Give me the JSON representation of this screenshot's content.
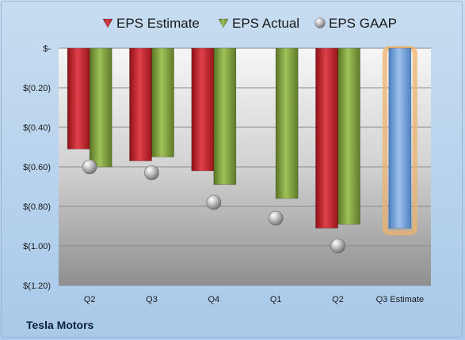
{
  "chart_data": {
    "type": "bar",
    "categories": [
      "Q2",
      "Q3",
      "Q4",
      "Q1",
      "Q2",
      "Q3 Estimate"
    ],
    "series": [
      {
        "name": "EPS Estimate",
        "color": "#c0202a",
        "values": [
          -0.51,
          -0.57,
          -0.62,
          null,
          -0.91,
          null
        ]
      },
      {
        "name": "EPS Actual",
        "color": "#7a9a34",
        "values": [
          -0.6,
          -0.55,
          -0.69,
          -0.76,
          -0.89,
          null
        ]
      },
      {
        "name": "EPS GAAP",
        "color": "#a8a8a8",
        "values": [
          -0.6,
          -0.63,
          -0.78,
          -0.86,
          -1.0,
          null
        ]
      }
    ],
    "highlight": {
      "category": "Q3 Estimate",
      "value": -0.91,
      "color": "#6f9fd8",
      "glow": "#f0b36a"
    },
    "y_ticks": [
      {
        "value": 0,
        "label": "$-"
      },
      {
        "value": -0.2,
        "label": "$(0.20)"
      },
      {
        "value": -0.4,
        "label": "$(0.40)"
      },
      {
        "value": -0.6,
        "label": "$(0.60)"
      },
      {
        "value": -0.8,
        "label": "$(0.80)"
      },
      {
        "value": -1.0,
        "label": "$(1.00)"
      },
      {
        "value": -1.2,
        "label": "$(1.20)"
      }
    ],
    "ylim": [
      -1.2,
      0
    ],
    "grid": true,
    "legend_position": "top"
  },
  "company": "Tesla Motors"
}
